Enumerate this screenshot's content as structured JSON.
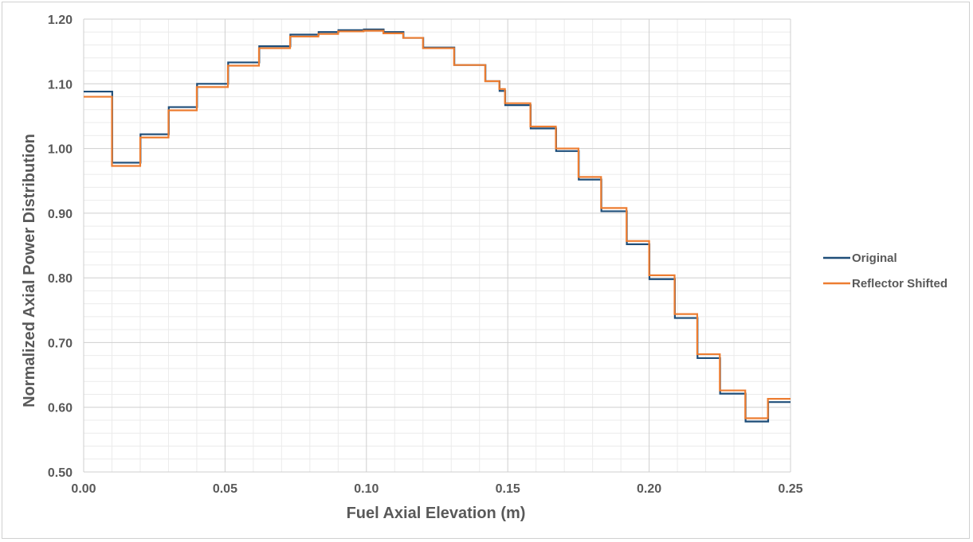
{
  "chart_data": {
    "type": "line",
    "step": true,
    "xlabel": "Fuel Axial Elevation (m)",
    "ylabel": "Normalized Axial Power Distribution",
    "xlim": [
      0,
      0.25
    ],
    "ylim": [
      0.5,
      1.2
    ],
    "x_ticks": [
      "0.00",
      "0.05",
      "0.10",
      "0.15",
      "0.20",
      "0.25"
    ],
    "y_ticks": [
      "0.50",
      "0.60",
      "0.70",
      "0.80",
      "0.90",
      "1.00",
      "1.10",
      "1.20"
    ],
    "x_minor_step": 0.01,
    "y_minor_step": 0.02,
    "grid": true,
    "legend_position": "right",
    "series": [
      {
        "name": "Original",
        "color": "#1F4E79",
        "x": [
          0,
          0.0101,
          0.0201,
          0.0301,
          0.0401,
          0.0511,
          0.0621,
          0.0731,
          0.0831,
          0.0901,
          0.0991,
          0.1061,
          0.1131,
          0.1201,
          0.1311,
          0.1421,
          0.1471,
          0.1491,
          0.1581,
          0.1671,
          0.1751,
          0.1831,
          0.1921,
          0.2001,
          0.2091,
          0.2171,
          0.2251,
          0.2341,
          0.2421,
          0.25
        ],
        "y": [
          1.088,
          0.978,
          1.022,
          1.064,
          1.1,
          1.133,
          1.158,
          1.176,
          1.18,
          1.183,
          1.184,
          1.18,
          1.171,
          1.156,
          1.129,
          1.104,
          1.089,
          1.067,
          1.031,
          0.996,
          0.952,
          0.903,
          0.852,
          0.798,
          0.738,
          0.676,
          0.621,
          0.578,
          0.608,
          0.608
        ]
      },
      {
        "name": "Reflector Shifted",
        "color": "#ED7D31",
        "x": [
          0,
          0.01,
          0.02,
          0.03,
          0.04,
          0.051,
          0.062,
          0.073,
          0.083,
          0.09,
          0.099,
          0.106,
          0.113,
          0.12,
          0.131,
          0.142,
          0.147,
          0.149,
          0.158,
          0.167,
          0.175,
          0.183,
          0.192,
          0.2,
          0.209,
          0.217,
          0.225,
          0.234,
          0.242,
          0.25
        ],
        "y": [
          1.08,
          0.973,
          1.017,
          1.059,
          1.095,
          1.128,
          1.155,
          1.173,
          1.177,
          1.181,
          1.182,
          1.178,
          1.171,
          1.155,
          1.129,
          1.104,
          1.092,
          1.07,
          1.034,
          1.0,
          0.956,
          0.908,
          0.857,
          0.804,
          0.744,
          0.682,
          0.626,
          0.583,
          0.613,
          0.613
        ]
      }
    ]
  }
}
